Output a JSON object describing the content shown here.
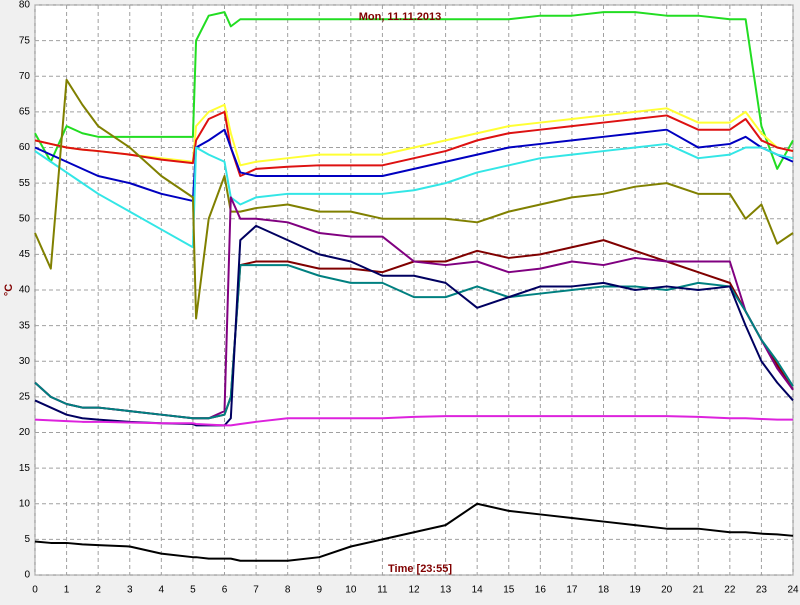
{
  "chart_data": {
    "type": "line",
    "title": "Mon, 11.11.2013",
    "x_label": "Time [23:55]",
    "y_label": "°C",
    "x": [
      0,
      0.5,
      1,
      1.5,
      2,
      3,
      4,
      5,
      5.1,
      5.5,
      6,
      6.2,
      6.5,
      7,
      8,
      9,
      10,
      11,
      12,
      13,
      14,
      15,
      16,
      17,
      18,
      19,
      20,
      21,
      22,
      22.5,
      23,
      23.5,
      24
    ],
    "xlim": [
      0,
      24
    ],
    "xticks": [
      0,
      1,
      2,
      3,
      4,
      5,
      6,
      7,
      8,
      9,
      10,
      11,
      12,
      13,
      14,
      15,
      16,
      17,
      18,
      19,
      20,
      21,
      22,
      23,
      24
    ],
    "ylim": [
      0,
      80
    ],
    "yticks": [
      0,
      5,
      10,
      15,
      20,
      25,
      30,
      35,
      40,
      45,
      50,
      55,
      60,
      65,
      70,
      75,
      80
    ],
    "grid": true,
    "series": [
      {
        "color": "#22dd22",
        "values": [
          62,
          58,
          63,
          62,
          61.5,
          61.5,
          61.5,
          61.5,
          75,
          78.5,
          79,
          77,
          78,
          78,
          78,
          78,
          78,
          78,
          78,
          78,
          78,
          78,
          78.5,
          78.5,
          79,
          79,
          78.5,
          78.5,
          78,
          78,
          63,
          57,
          61
        ]
      },
      {
        "color": "#ffff33",
        "values": [
          61,
          60.5,
          60,
          59.7,
          59.5,
          59,
          58.5,
          58,
          63,
          65,
          66,
          62,
          57.5,
          58,
          58.5,
          59,
          59,
          59,
          60,
          61,
          62,
          63,
          63.5,
          64,
          64.5,
          65,
          65.5,
          63.5,
          63.5,
          65,
          62,
          60,
          59.5
        ]
      },
      {
        "color": "#dd1111",
        "values": [
          61,
          60.5,
          60,
          59.7,
          59.5,
          59,
          58.3,
          57.8,
          61,
          64,
          65,
          60,
          56,
          57,
          57.3,
          57.5,
          57.5,
          57.5,
          58.5,
          59.5,
          61,
          62,
          62.5,
          63,
          63.5,
          64,
          64.5,
          62.5,
          62.5,
          64,
          61,
          60,
          59.5
        ]
      },
      {
        "color": "#0000c0",
        "values": [
          60,
          59,
          58,
          57,
          56,
          55,
          53.5,
          52.5,
          60,
          61,
          62.5,
          60,
          56.5,
          56,
          56,
          56,
          56,
          56,
          57,
          58,
          59,
          60,
          60.5,
          61,
          61.5,
          62,
          62.5,
          60,
          60.5,
          61.5,
          60,
          59,
          58
        ]
      },
      {
        "color": "#33e6e6",
        "values": [
          59.5,
          58,
          56.5,
          55,
          53.5,
          51,
          48.5,
          46,
          60,
          59,
          58,
          53,
          52,
          53,
          53.5,
          53.5,
          53.5,
          53.5,
          54,
          55,
          56.5,
          57.5,
          58.5,
          59,
          59.5,
          60,
          60.5,
          58.5,
          59,
          60,
          60,
          59,
          58.5
        ]
      },
      {
        "color": "#808000",
        "values": [
          48,
          43,
          69.5,
          66,
          63,
          60,
          56,
          53,
          36,
          50,
          56,
          51,
          51,
          51.5,
          52,
          51,
          51,
          50,
          50,
          50,
          49.5,
          51,
          52,
          53,
          53.5,
          54.5,
          55,
          53.5,
          53.5,
          50,
          52,
          46.5,
          48
        ]
      },
      {
        "color": "#800000",
        "values": [
          27,
          25,
          24,
          23.5,
          23.5,
          23,
          22.5,
          22,
          22,
          22,
          22.5,
          25,
          43.5,
          44,
          44,
          43,
          43,
          42.5,
          44,
          44,
          45.5,
          44.5,
          45,
          46,
          47,
          45.5,
          44,
          42.5,
          41,
          37,
          33,
          29.5,
          26
        ]
      },
      {
        "color": "#800080",
        "values": [
          27,
          25,
          24,
          23.5,
          23.5,
          23,
          22.5,
          22,
          22,
          22,
          23,
          53,
          50,
          50,
          49.5,
          48,
          47.5,
          47.5,
          44,
          43.5,
          44,
          42.5,
          43,
          44,
          43.5,
          44.5,
          44,
          44,
          44,
          37,
          33,
          29,
          26
        ]
      },
      {
        "color": "#008080",
        "values": [
          27,
          25,
          24,
          23.5,
          23.5,
          23,
          22.5,
          22,
          22,
          22,
          22.5,
          25,
          43.5,
          43.5,
          43.5,
          42,
          41,
          41,
          39,
          39,
          40.5,
          39,
          39.5,
          40,
          40.5,
          40.5,
          40,
          41,
          40.5,
          37,
          33,
          30,
          26.5
        ]
      },
      {
        "color": "#000060",
        "values": [
          24.5,
          23.5,
          22.5,
          22,
          21.8,
          21.5,
          21.3,
          21.2,
          21,
          21,
          21,
          22,
          47,
          49,
          47,
          45,
          44,
          42,
          42,
          41,
          37.5,
          39,
          40.5,
          40.5,
          41,
          40,
          40.5,
          40,
          40.5,
          35,
          30,
          27,
          24.5
        ]
      },
      {
        "color": "#dd22dd",
        "values": [
          21.8,
          21.7,
          21.6,
          21.5,
          21.5,
          21.4,
          21.3,
          21.3,
          21.2,
          21.1,
          21,
          21,
          21.2,
          21.5,
          22,
          22,
          22,
          22,
          22.2,
          22.3,
          22.3,
          22.3,
          22.3,
          22.3,
          22.3,
          22.3,
          22.3,
          22.2,
          22,
          22,
          21.9,
          21.8,
          21.8
        ]
      },
      {
        "color": "#000000",
        "values": [
          4.7,
          4.5,
          4.5,
          4.3,
          4.2,
          4,
          3,
          2.5,
          2.5,
          2.3,
          2.3,
          2.3,
          2,
          2,
          2,
          2.5,
          4,
          5,
          6,
          7,
          10,
          9,
          8.5,
          8,
          7.5,
          7,
          6.5,
          6.5,
          6,
          6,
          5.8,
          5.7,
          5.5
        ]
      }
    ]
  }
}
